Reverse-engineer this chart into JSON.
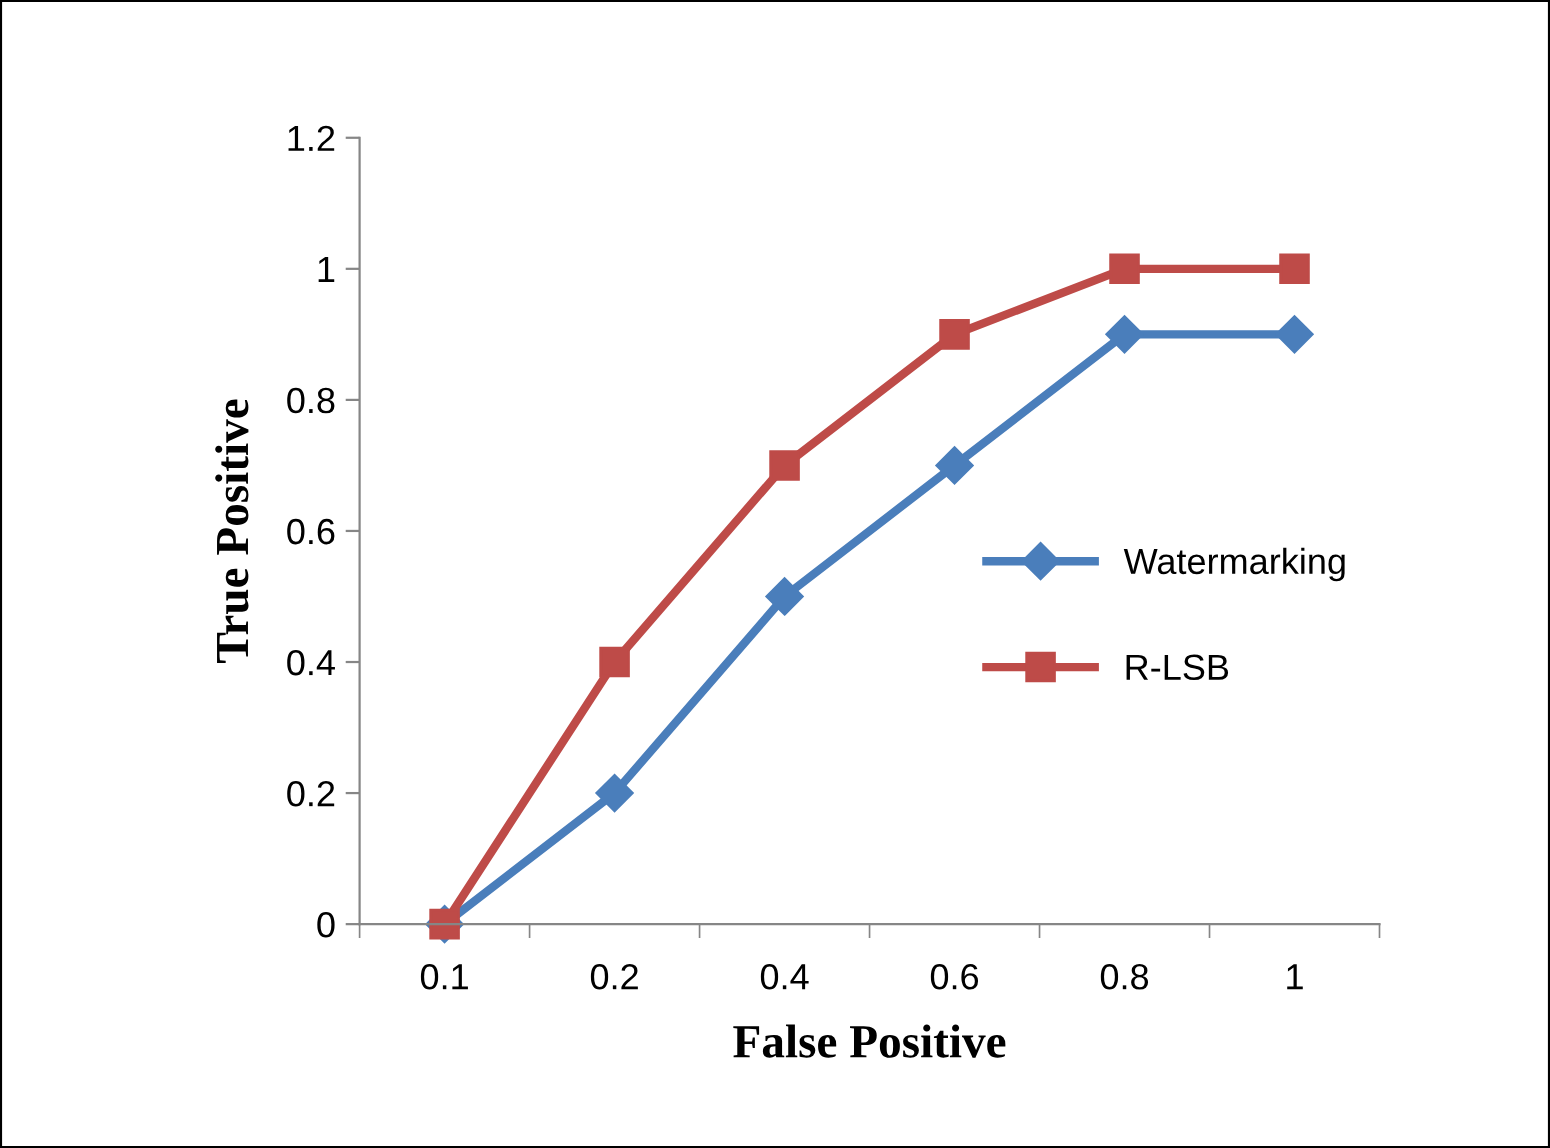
{
  "chart_data": {
    "type": "line",
    "xlabel": "False Positive",
    "ylabel": "True Positive",
    "categories": [
      "0.1",
      "0.2",
      "0.4",
      "0.6",
      "0.8",
      "1"
    ],
    "series": [
      {
        "name": "Watermarking",
        "color": "#4a7ebb",
        "marker": "diamond",
        "values": [
          0,
          0.2,
          0.5,
          0.7,
          0.9,
          0.9
        ]
      },
      {
        "name": "R-LSB",
        "color": "#be4b48",
        "marker": "square",
        "values": [
          0,
          0.4,
          0.7,
          0.9,
          1,
          1
        ]
      }
    ],
    "ylim": [
      0,
      1.2
    ],
    "yticks": [
      0,
      0.2,
      0.4,
      0.6,
      0.8,
      1,
      1.2
    ],
    "grid": false,
    "legend": "right",
    "line_style": "solid"
  }
}
